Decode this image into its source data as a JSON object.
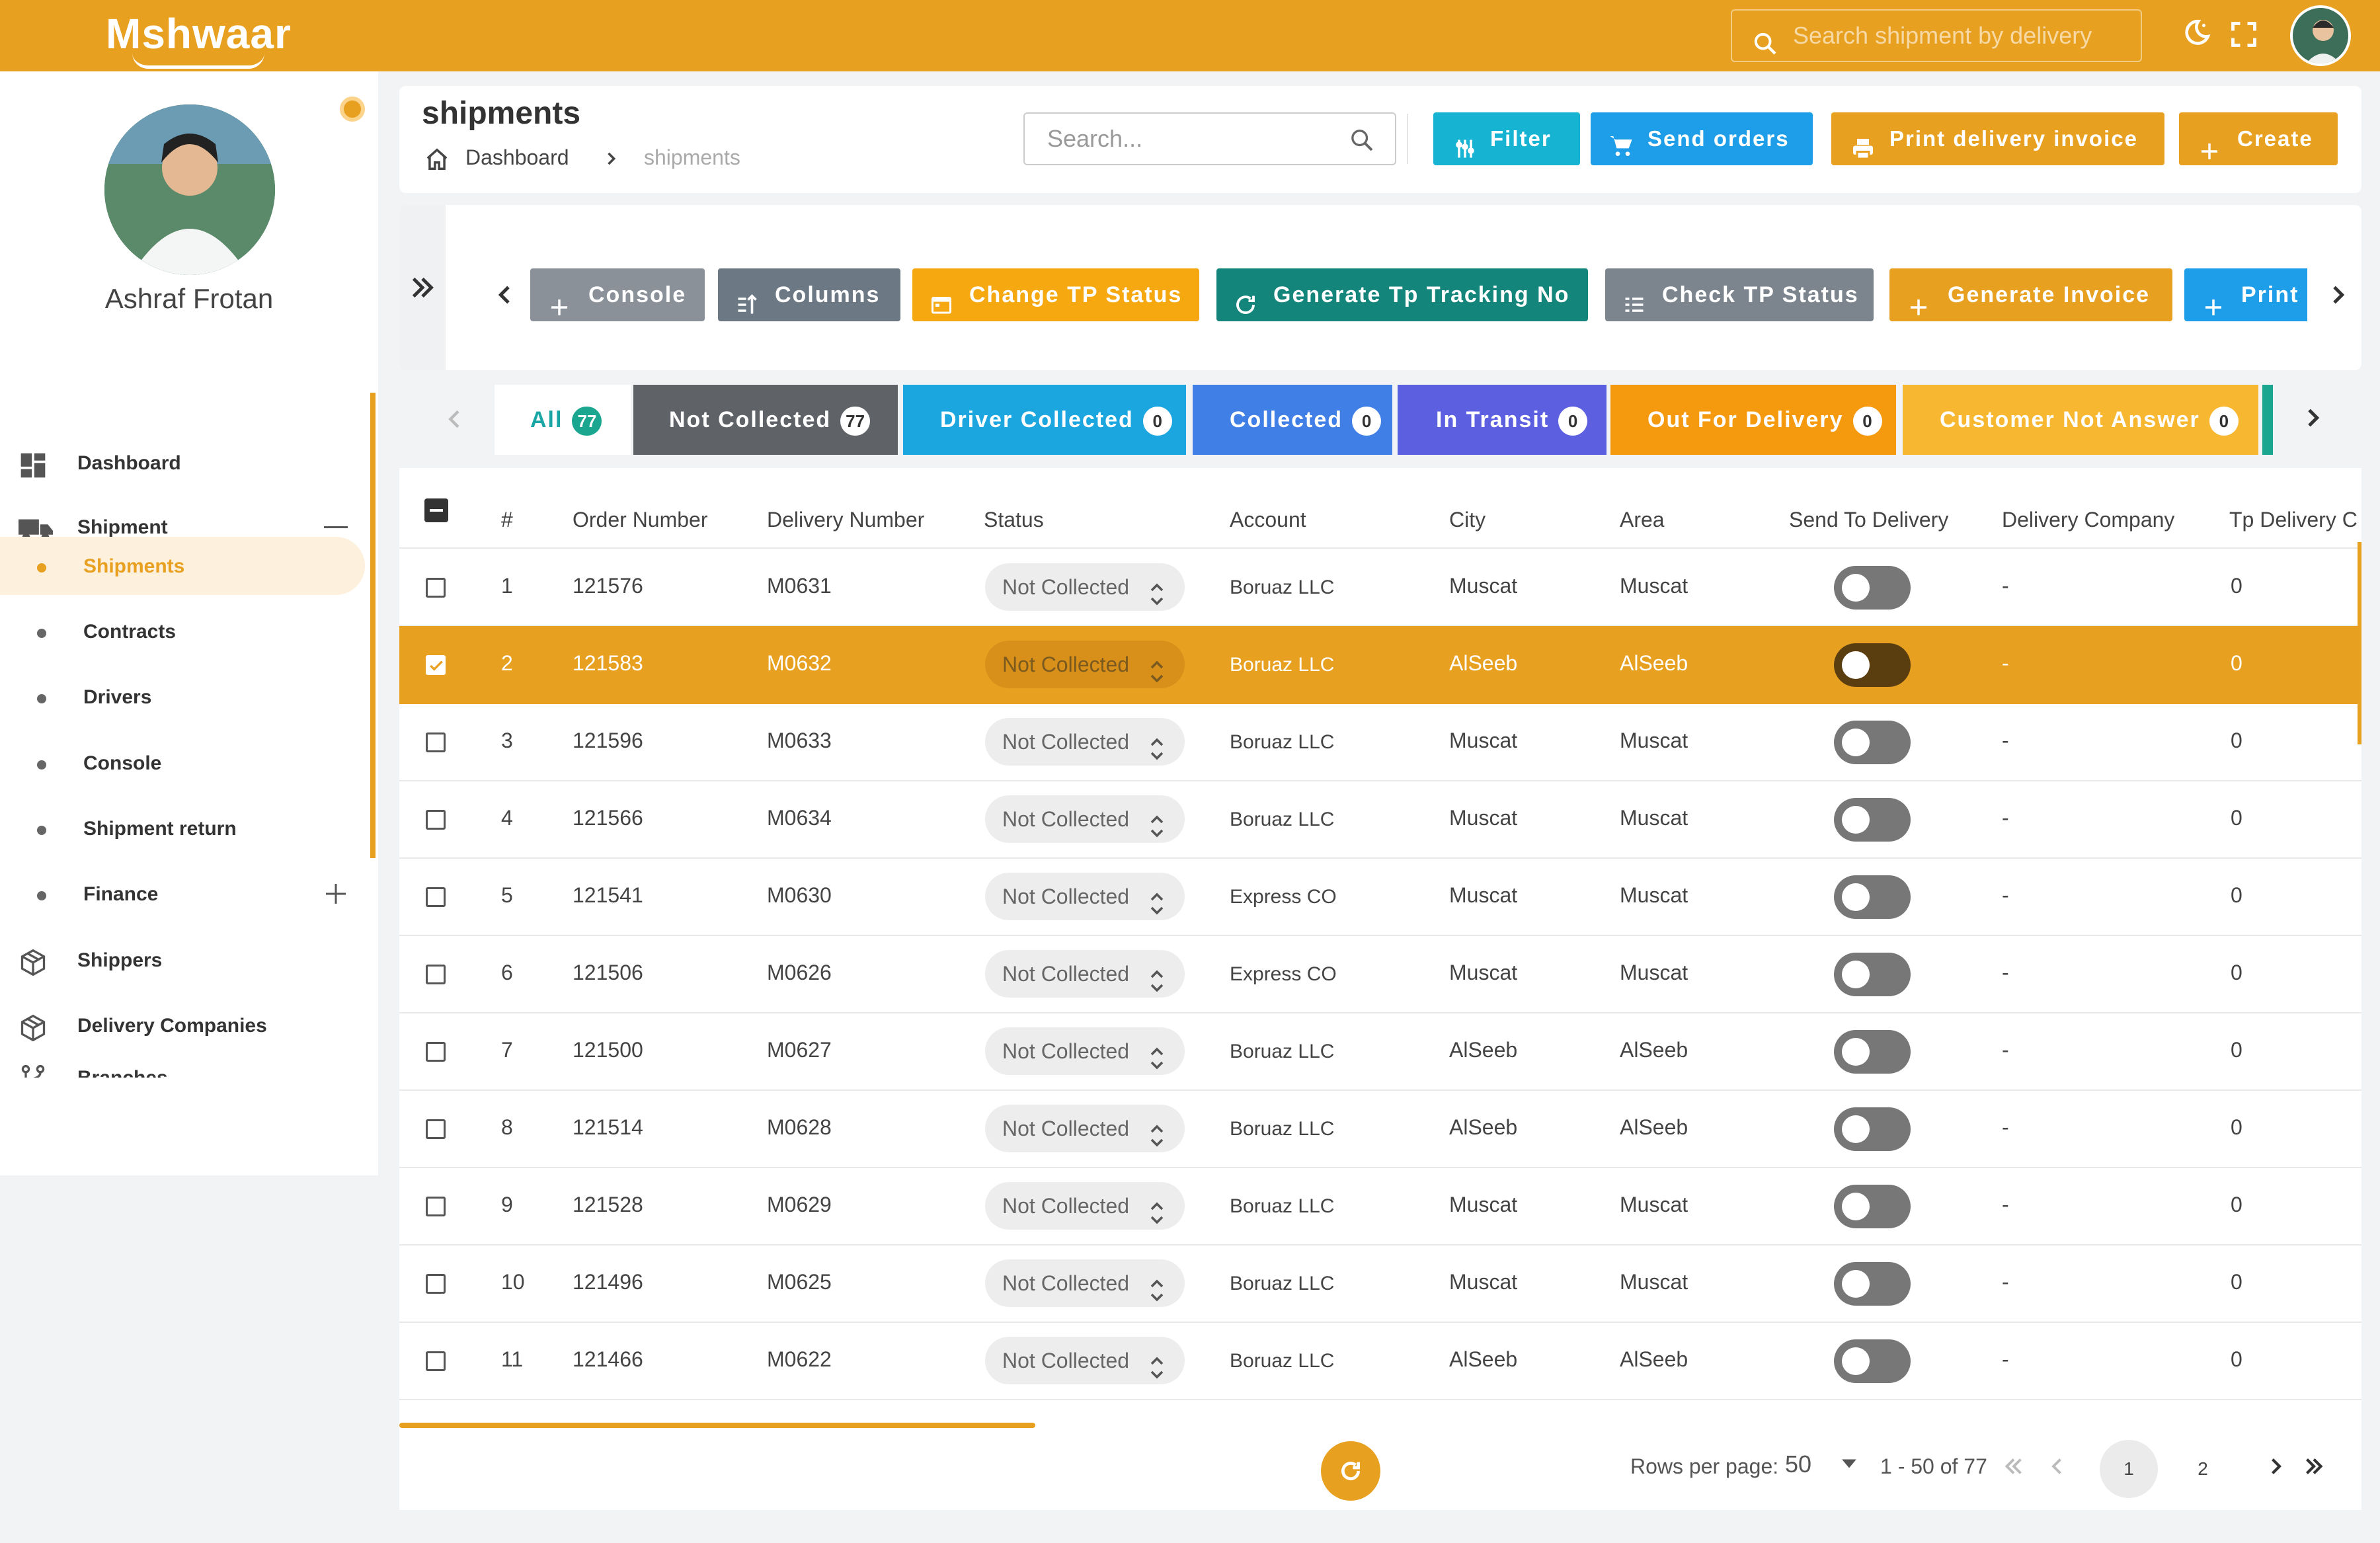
{
  "app": {
    "logo": "Mshwaar",
    "top_search_placeholder": "Search shipment by delivery"
  },
  "profile": {
    "name": "Ashraf Frotan"
  },
  "sidebar": {
    "items": [
      {
        "label": "Dashboard",
        "icon": "dashboard-icon"
      },
      {
        "label": "Shipment",
        "icon": "truck-icon",
        "expanded": true
      },
      {
        "label": "Shipments",
        "sub": true,
        "active": true
      },
      {
        "label": "Contracts",
        "sub": true
      },
      {
        "label": "Drivers",
        "sub": true
      },
      {
        "label": "Console",
        "sub": true
      },
      {
        "label": "Shipment return",
        "sub": true
      },
      {
        "label": "Finance",
        "sub": true,
        "expandable": true
      },
      {
        "label": "Shippers",
        "icon": "box-icon"
      },
      {
        "label": "Delivery Companies",
        "icon": "box-icon"
      },
      {
        "label": "Branches",
        "icon": "branch-icon"
      }
    ]
  },
  "header": {
    "title": "shipments",
    "breadcrumb_home": "Dashboard",
    "breadcrumb_current": "shipments",
    "search_placeholder": "Search...",
    "filter": "Filter",
    "send_orders": "Send orders",
    "print_delivery_invoice": "Print delivery invoice",
    "create": "Create"
  },
  "actions": {
    "console": "Console",
    "columns": "Columns",
    "change_tp_status": "Change TP Status",
    "generate_tp_tracking": "Generate Tp Tracking No",
    "check_tp_status": "Check TP Status",
    "generate_invoice": "Generate Invoice",
    "print": "Print"
  },
  "tabs": [
    {
      "label": "All",
      "count": "77",
      "color": "#ffffff"
    },
    {
      "label": "Not Collected",
      "count": "77",
      "color": "#5f6368"
    },
    {
      "label": "Driver Collected",
      "count": "0",
      "color": "#1ba6e0"
    },
    {
      "label": "Collected",
      "count": "0",
      "color": "#3f7fe6"
    },
    {
      "label": "In Transit",
      "count": "0",
      "color": "#5b5fe0"
    },
    {
      "label": "Out For Delivery",
      "count": "0",
      "color": "#f5990f"
    },
    {
      "label": "Customer Not Answer",
      "count": "0",
      "color": "#f7b731"
    }
  ],
  "table": {
    "columns": [
      "#",
      "Order Number",
      "Delivery Number",
      "Status",
      "Account",
      "City",
      "Area",
      "Send To Delivery",
      "Delivery Company",
      "Tp Delivery C"
    ],
    "rows": [
      {
        "n": "1",
        "order": "121576",
        "delivery": "M0631",
        "status": "Not Collected",
        "account": "Boruaz LLC",
        "city": "Muscat",
        "area": "Muscat",
        "company": "-",
        "tp": "0"
      },
      {
        "n": "2",
        "order": "121583",
        "delivery": "M0632",
        "status": "Not Collected",
        "account": "Boruaz LLC",
        "city": "AlSeeb",
        "area": "AlSeeb",
        "company": "-",
        "tp": "0",
        "selected": true
      },
      {
        "n": "3",
        "order": "121596",
        "delivery": "M0633",
        "status": "Not Collected",
        "account": "Boruaz LLC",
        "city": "Muscat",
        "area": "Muscat",
        "company": "-",
        "tp": "0"
      },
      {
        "n": "4",
        "order": "121566",
        "delivery": "M0634",
        "status": "Not Collected",
        "account": "Boruaz LLC",
        "city": "Muscat",
        "area": "Muscat",
        "company": "-",
        "tp": "0"
      },
      {
        "n": "5",
        "order": "121541",
        "delivery": "M0630",
        "status": "Not Collected",
        "account": "Express CO",
        "city": "Muscat",
        "area": "Muscat",
        "company": "-",
        "tp": "0"
      },
      {
        "n": "6",
        "order": "121506",
        "delivery": "M0626",
        "status": "Not Collected",
        "account": "Express CO",
        "city": "Muscat",
        "area": "Muscat",
        "company": "-",
        "tp": "0"
      },
      {
        "n": "7",
        "order": "121500",
        "delivery": "M0627",
        "status": "Not Collected",
        "account": "Boruaz LLC",
        "city": "AlSeeb",
        "area": "AlSeeb",
        "company": "-",
        "tp": "0"
      },
      {
        "n": "8",
        "order": "121514",
        "delivery": "M0628",
        "status": "Not Collected",
        "account": "Boruaz LLC",
        "city": "AlSeeb",
        "area": "AlSeeb",
        "company": "-",
        "tp": "0"
      },
      {
        "n": "9",
        "order": "121528",
        "delivery": "M0629",
        "status": "Not Collected",
        "account": "Boruaz LLC",
        "city": "Muscat",
        "area": "Muscat",
        "company": "-",
        "tp": "0"
      },
      {
        "n": "10",
        "order": "121496",
        "delivery": "M0625",
        "status": "Not Collected",
        "account": "Boruaz LLC",
        "city": "Muscat",
        "area": "Muscat",
        "company": "-",
        "tp": "0"
      },
      {
        "n": "11",
        "order": "121466",
        "delivery": "M0622",
        "status": "Not Collected",
        "account": "Boruaz LLC",
        "city": "AlSeeb",
        "area": "AlSeeb",
        "company": "-",
        "tp": "0"
      }
    ]
  },
  "pagination": {
    "rows_per_page_label": "Rows per page:",
    "rows_per_page": "50",
    "range": "1 - 50 of 77",
    "pages": [
      "1",
      "2"
    ],
    "current_page": "1"
  }
}
